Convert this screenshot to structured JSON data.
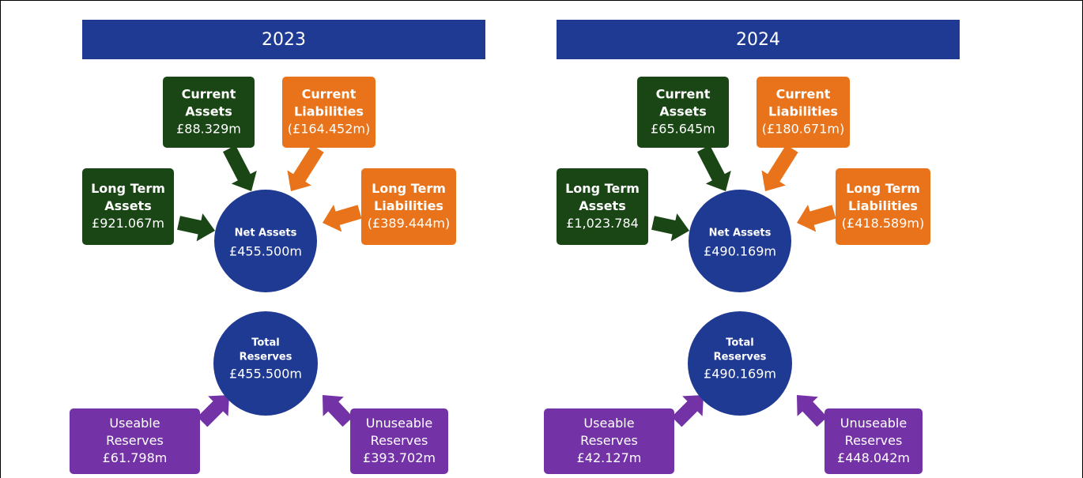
{
  "panels": [
    {
      "year": "2023",
      "nodes": [
        {
          "label": [
            "Current",
            "Assets"
          ],
          "value": "£88.329m"
        },
        {
          "label": [
            "Current",
            "Liabilities"
          ],
          "value": "(£164.452m)"
        },
        {
          "label": [
            "Long Term",
            "Assets"
          ],
          "value": "£921.067m"
        },
        {
          "label": [
            "Long Term",
            "Liabilities"
          ],
          "value": "(£389.444m)"
        },
        {
          "label": [
            "Net Assets"
          ],
          "value": "£455.500m"
        },
        {
          "label": [
            "Total",
            "Reserves"
          ],
          "value": "£455.500m"
        },
        {
          "label": [
            "Useable",
            "Reserves"
          ],
          "value": "£61.798m"
        },
        {
          "label": [
            "Unuseable",
            "Reserves"
          ],
          "value": "£393.702m"
        }
      ]
    },
    {
      "year": "2024",
      "nodes": [
        {
          "label": [
            "Current",
            "Assets"
          ],
          "value": "£65.645m"
        },
        {
          "label": [
            "Current",
            "Liabilities"
          ],
          "value": "(£180.671m)"
        },
        {
          "label": [
            "Long Term",
            "Assets"
          ],
          "value": "£1,023.784"
        },
        {
          "label": [
            "Long Term",
            "Liabilities"
          ],
          "value": "(£418.589m)"
        },
        {
          "label": [
            "Net Assets"
          ],
          "value": "£490.169m"
        },
        {
          "label": [
            "Total",
            "Reserves"
          ],
          "value": "£490.169m"
        },
        {
          "label": [
            "Useable",
            "Reserves"
          ],
          "value": "£42.127m"
        },
        {
          "label": [
            "Unuseable",
            "Reserves"
          ],
          "value": "£448.042m"
        }
      ]
    }
  ]
}
